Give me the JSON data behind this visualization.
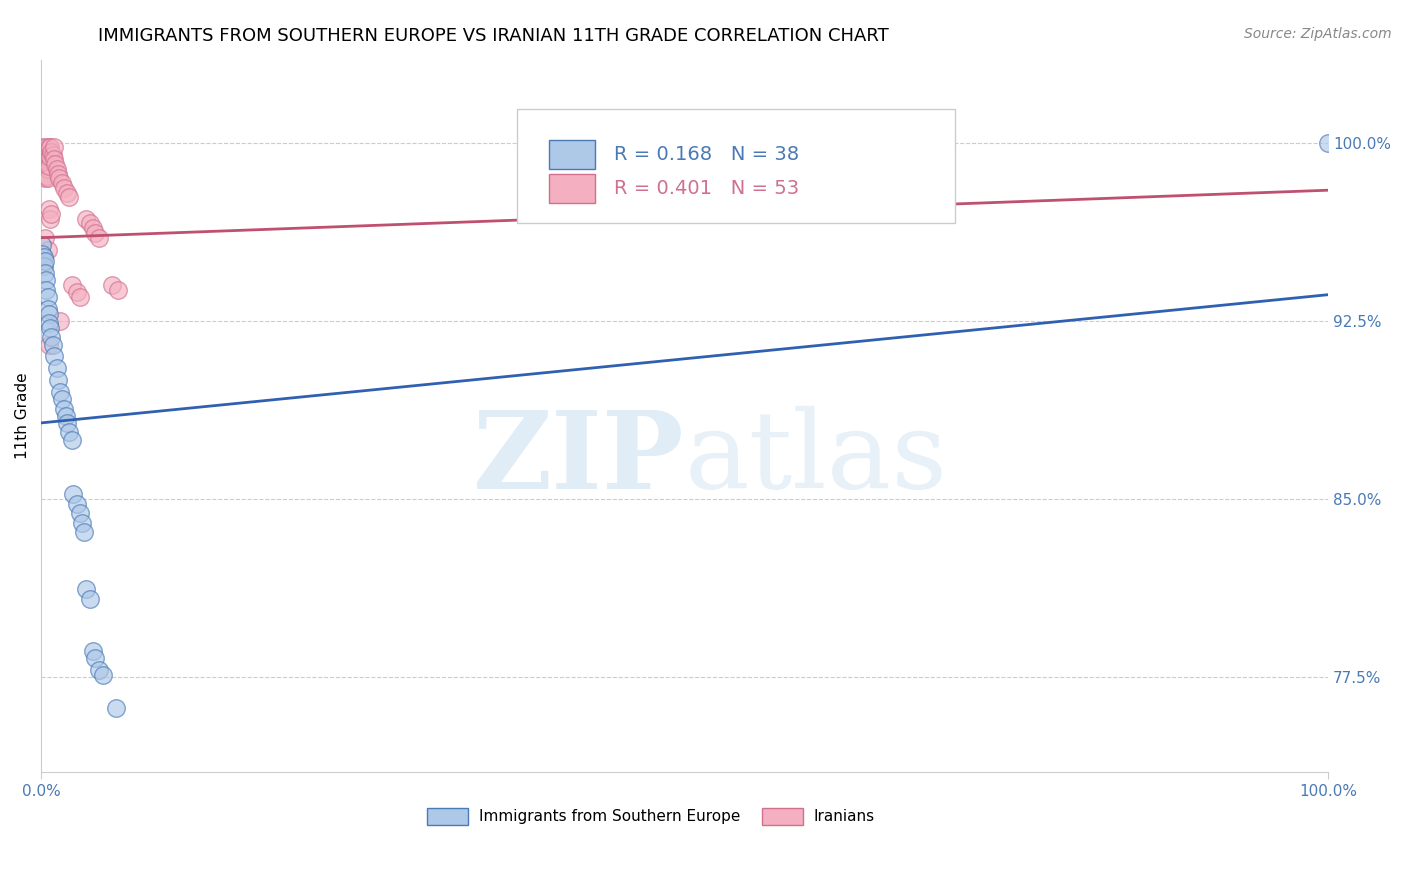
{
  "title": "IMMIGRANTS FROM SOUTHERN EUROPE VS IRANIAN 11TH GRADE CORRELATION CHART",
  "source": "Source: ZipAtlas.com",
  "ylabel": "11th Grade",
  "xlim": [
    0.0,
    1.0
  ],
  "ylim": [
    0.735,
    1.035
  ],
  "yticks": [
    0.775,
    0.85,
    0.925,
    1.0
  ],
  "ytick_labels": [
    "77.5%",
    "85.0%",
    "92.5%",
    "100.0%"
  ],
  "xticks": [
    0.0,
    1.0
  ],
  "xtick_labels": [
    "0.0%",
    "100.0%"
  ],
  "blue_label": "Immigrants from Southern Europe",
  "pink_label": "Iranians",
  "blue_R": 0.168,
  "blue_N": 38,
  "pink_R": 0.401,
  "pink_N": 53,
  "blue_face_color": "#aec8e8",
  "pink_face_color": "#f4b0c0",
  "blue_edge_color": "#4a7ab5",
  "pink_edge_color": "#d07090",
  "blue_line_color": "#3060b0",
  "pink_line_color": "#c05070",
  "ytick_color": "#4a7ab5",
  "xtick_color": "#4a7ab5",
  "blue_scatter_x": [
    0.001,
    0.001,
    0.002,
    0.002,
    0.003,
    0.003,
    0.004,
    0.004,
    0.005,
    0.005,
    0.006,
    0.006,
    0.007,
    0.008,
    0.009,
    0.01,
    0.012,
    0.013,
    0.015,
    0.016,
    0.018,
    0.019,
    0.02,
    0.022,
    0.024,
    0.025,
    0.028,
    0.03,
    0.032,
    0.033,
    0.035,
    0.038,
    0.04,
    0.042,
    0.045,
    0.048,
    0.058,
    1.0
  ],
  "blue_scatter_y": [
    0.957,
    0.953,
    0.952,
    0.948,
    0.95,
    0.945,
    0.942,
    0.938,
    0.935,
    0.93,
    0.928,
    0.924,
    0.922,
    0.918,
    0.915,
    0.91,
    0.905,
    0.9,
    0.895,
    0.892,
    0.888,
    0.885,
    0.882,
    0.878,
    0.875,
    0.852,
    0.848,
    0.844,
    0.84,
    0.836,
    0.812,
    0.808,
    0.786,
    0.783,
    0.778,
    0.776,
    0.762,
    1.0
  ],
  "pink_scatter_x": [
    0.001,
    0.001,
    0.001,
    0.002,
    0.002,
    0.002,
    0.002,
    0.003,
    0.003,
    0.003,
    0.003,
    0.003,
    0.004,
    0.004,
    0.004,
    0.004,
    0.005,
    0.005,
    0.005,
    0.005,
    0.005,
    0.006,
    0.006,
    0.006,
    0.006,
    0.007,
    0.007,
    0.007,
    0.008,
    0.008,
    0.009,
    0.01,
    0.01,
    0.011,
    0.012,
    0.013,
    0.014,
    0.016,
    0.018,
    0.02,
    0.022,
    0.024,
    0.028,
    0.03,
    0.035,
    0.038,
    0.04,
    0.042,
    0.045,
    0.055,
    0.006,
    0.015,
    0.06
  ],
  "pink_scatter_y": [
    0.998,
    0.995,
    0.992,
    0.996,
    0.993,
    0.99,
    0.987,
    0.994,
    0.991,
    0.988,
    0.985,
    0.96,
    0.998,
    0.994,
    0.99,
    0.986,
    0.997,
    0.993,
    0.989,
    0.985,
    0.955,
    0.998,
    0.994,
    0.99,
    0.972,
    0.998,
    0.994,
    0.968,
    0.996,
    0.97,
    0.995,
    0.998,
    0.993,
    0.991,
    0.989,
    0.987,
    0.985,
    0.983,
    0.981,
    0.979,
    0.977,
    0.94,
    0.937,
    0.935,
    0.968,
    0.966,
    0.964,
    0.962,
    0.96,
    0.94,
    0.915,
    0.925,
    0.938
  ],
  "blue_trend_x": [
    0.0,
    1.0
  ],
  "blue_trend_y": [
    0.882,
    0.936
  ],
  "pink_trend_x": [
    0.0,
    1.0
  ],
  "pink_trend_y": [
    0.96,
    0.98
  ],
  "watermark_zip": "ZIP",
  "watermark_atlas": "atlas",
  "background_color": "#ffffff",
  "grid_color": "#cccccc",
  "title_fontsize": 13,
  "axis_label_fontsize": 11,
  "tick_fontsize": 11,
  "legend_fontsize": 14,
  "source_fontsize": 10
}
